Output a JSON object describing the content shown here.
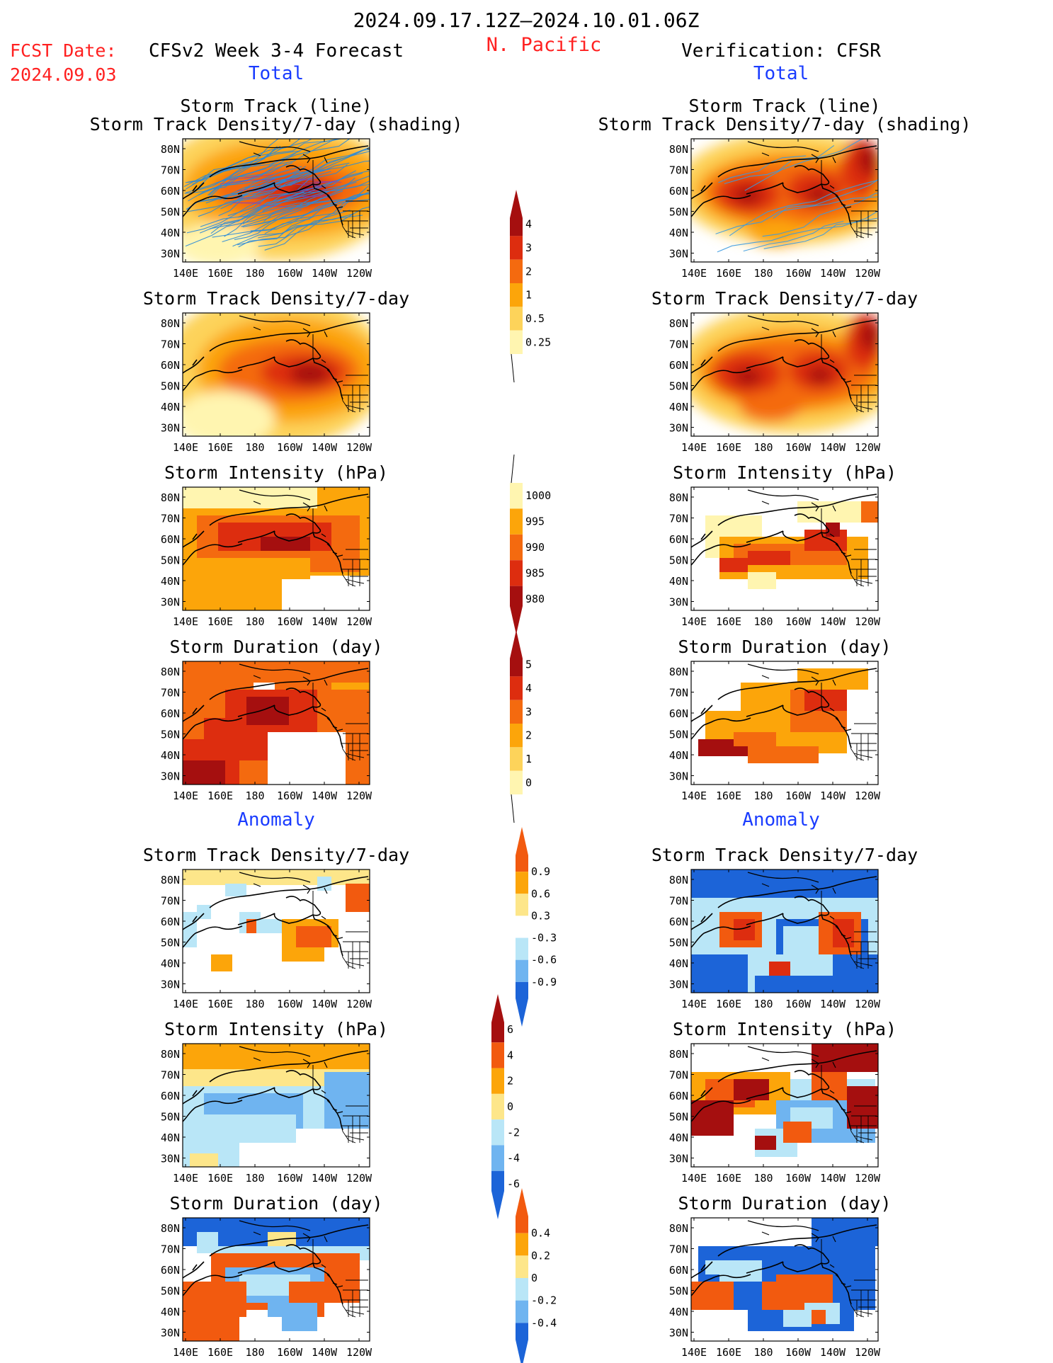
{
  "header": {
    "period": "2024.09.17.12Z–2024.10.01.06Z",
    "region": "N. Pacific",
    "fcst_label": "FCST Date:",
    "fcst_date": "2024.09.03",
    "left_title": "CFSv2 Week 3-4 Forecast",
    "right_title": "Verification: CFSR"
  },
  "sections": {
    "total": "Total",
    "anomaly": "Anomaly"
  },
  "axes": {
    "lat_ticks": [
      "80N",
      "70N",
      "60N",
      "50N",
      "40N",
      "30N"
    ],
    "lon_ticks": [
      "140E",
      "160E",
      "180",
      "160W",
      "140W",
      "120W"
    ]
  },
  "panel_titles": {
    "track": [
      "Storm Track (line)",
      "Storm Track Density/7-day (shading)"
    ],
    "density": "Storm Track Density/7-day",
    "intensity": "Storm Intensity (hPa)",
    "duration": "Storm Duration (day)"
  },
  "colorbars": {
    "density_total": {
      "labels": [
        "4",
        "3",
        "2",
        "1",
        "0.5",
        "0.25"
      ],
      "colors": [
        "#a50f0f",
        "#dd2d0f",
        "#f46a0f",
        "#fca50a",
        "#fdd35a",
        "#fff5b0"
      ]
    },
    "intensity_total": {
      "labels": [
        "1000",
        "995",
        "990",
        "985",
        "980"
      ],
      "colors": [
        "#fff5b0",
        "#fca50a",
        "#f46a0f",
        "#dd2d0f",
        "#a50f0f"
      ]
    },
    "duration_total": {
      "labels": [
        "5",
        "4",
        "3",
        "2",
        "1",
        "0"
      ],
      "colors": [
        "#a50f0f",
        "#dd2d0f",
        "#f46a0f",
        "#fca50a",
        "#fdd35a",
        "#fff5b0"
      ]
    },
    "density_anom": {
      "labels": [
        "0.9",
        "0.6",
        "0.3",
        "-0.3",
        "-0.6",
        "-0.9"
      ],
      "colors": [
        "#f25a0f",
        "#fca50a",
        "#fde68a",
        "#ffffff",
        "#b9e6f7",
        "#6fb4f0",
        "#1c64d8"
      ]
    },
    "intensity_anom": {
      "labels": [
        "6",
        "4",
        "2",
        "0",
        "-2",
        "-4",
        "-6"
      ],
      "colors": [
        "#a50f0f",
        "#f25a0f",
        "#fca50a",
        "#fde68a",
        "#b9e6f7",
        "#6fb4f0",
        "#1c64d8"
      ]
    },
    "duration_anom": {
      "labels": [
        "0.4",
        "0.2",
        "0",
        "-0.2",
        "-0.4"
      ],
      "colors": [
        "#f25a0f",
        "#fca50a",
        "#fde68a",
        "#b9e6f7",
        "#6fb4f0",
        "#1c64d8"
      ]
    }
  }
}
